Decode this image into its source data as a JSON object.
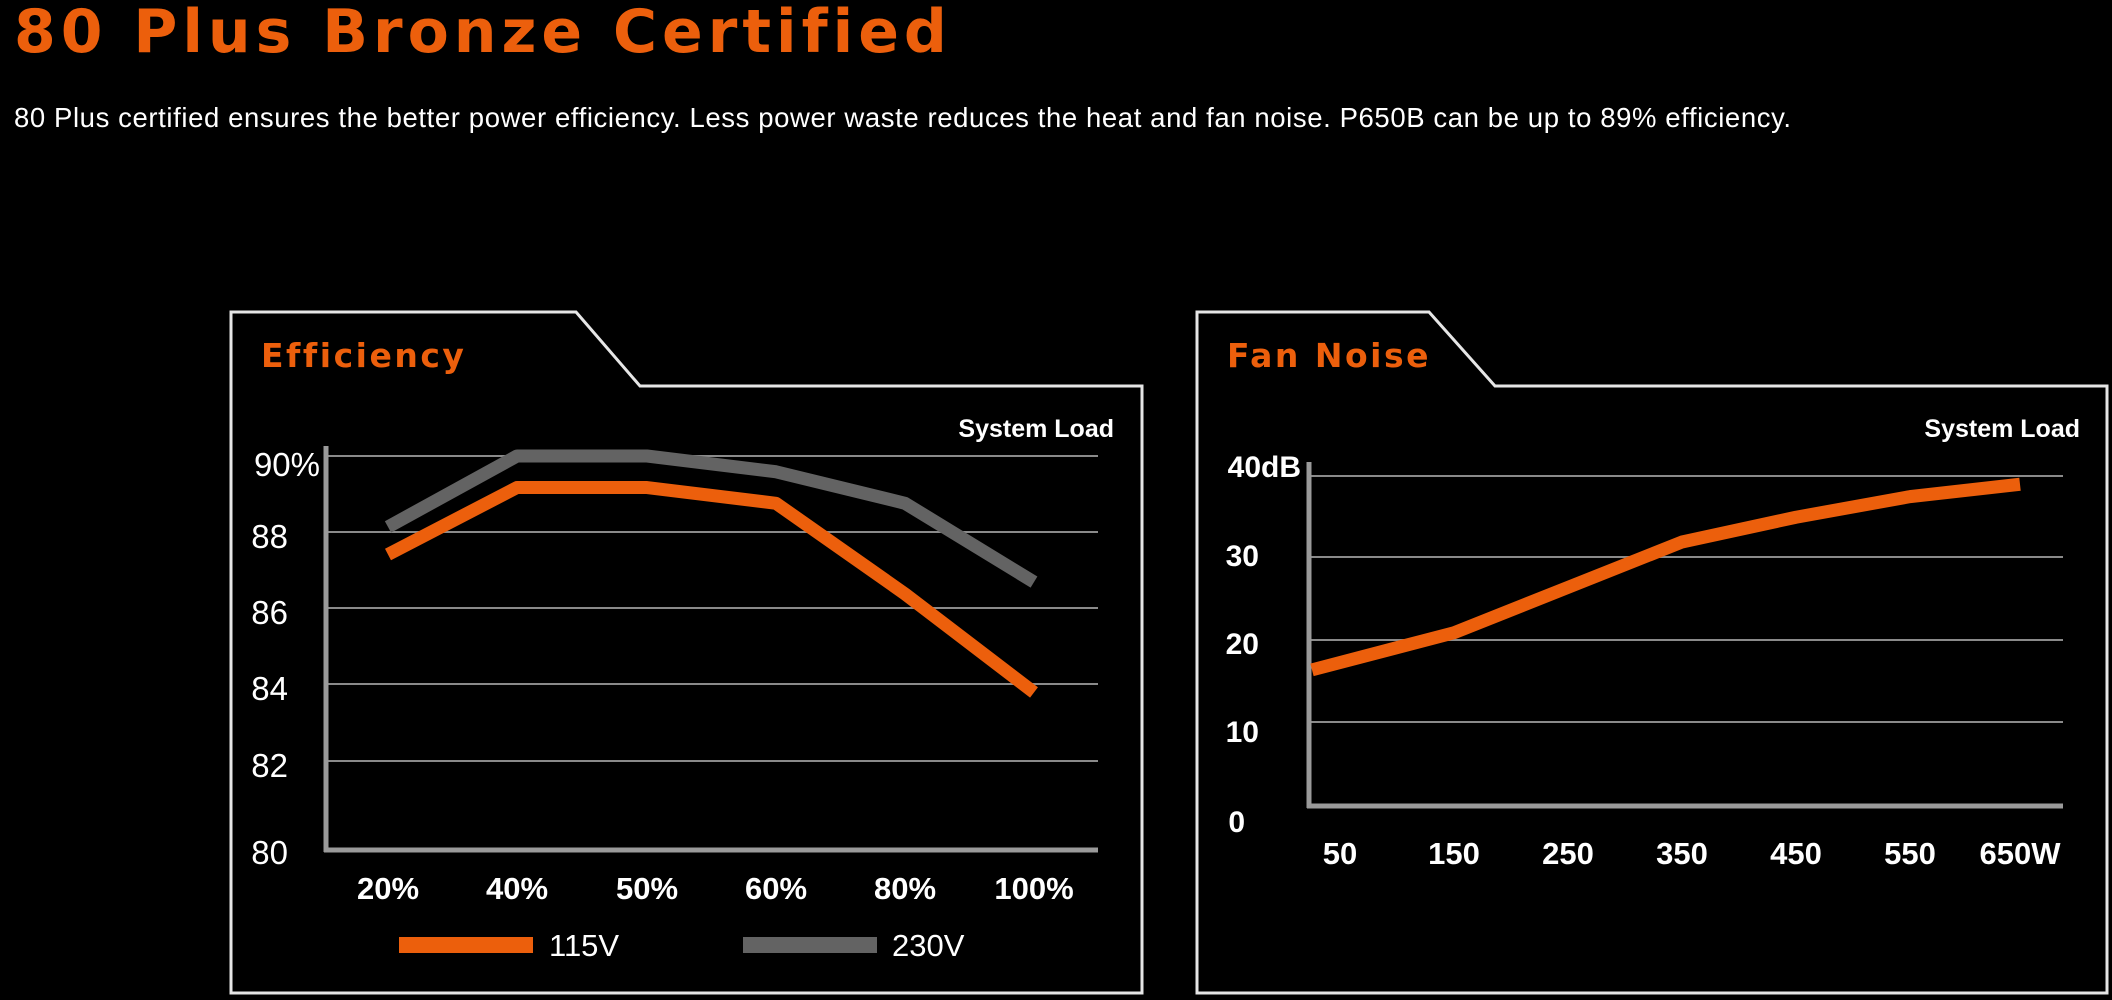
{
  "header": {
    "title": "80 Plus Bronze Certified",
    "subtitle": "80 Plus certified ensures the better power efficiency. Less power waste reduces the heat and fan noise. P650B can be up to 89% efficiency."
  },
  "colors": {
    "accent": "#ec5f0c",
    "secondary_series": "#636363",
    "grid": "#8a8a8a",
    "axis": "#9a9a9a",
    "panel_border": "#e6e6e6",
    "text": "#ffffff",
    "background": "#000000"
  },
  "chart_data": [
    {
      "type": "line",
      "title": "Efficiency",
      "xlabel": "System Load",
      "ylabel": "",
      "categories": [
        "20%",
        "40%",
        "50%",
        "60%",
        "80%",
        "100%"
      ],
      "y_tick_labels": [
        "90%",
        "88",
        "86",
        "84",
        "82",
        "80"
      ],
      "ylim": [
        80,
        90
      ],
      "grid": true,
      "legend": "bottom",
      "series": [
        {
          "name": "115V",
          "color": "#ec5f0c",
          "values": [
            87.5,
            89.2,
            89.2,
            88.8,
            86.5,
            84.0
          ]
        },
        {
          "name": "230V",
          "color": "#636363",
          "values": [
            88.2,
            90.0,
            90.0,
            89.6,
            88.8,
            86.8
          ]
        }
      ]
    },
    {
      "type": "line",
      "title": "Fan Noise",
      "xlabel": "System Load",
      "ylabel": "",
      "categories": [
        "50",
        "150",
        "250",
        "350",
        "450",
        "550",
        "650W"
      ],
      "y_tick_labels": [
        "40dB",
        "30",
        "20",
        "10",
        "0"
      ],
      "ylim": [
        0,
        40
      ],
      "grid": true,
      "series": [
        {
          "color": "#ec5f0c",
          "values": [
            16.5,
            21,
            26.5,
            32,
            35,
            37.5,
            39
          ]
        }
      ]
    }
  ]
}
